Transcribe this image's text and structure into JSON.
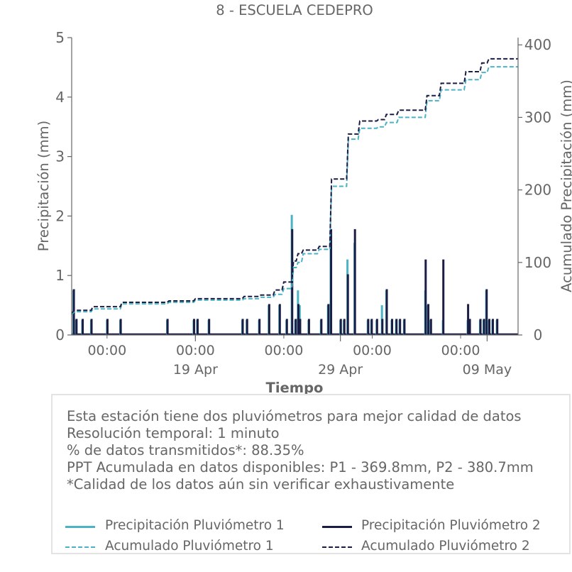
{
  "chart_data": {
    "type": "bar+line",
    "title": "8 - ESCUELA CEDEPRO",
    "xlabel": "Tiempo",
    "ylabel": "Precipitación (mm)",
    "y2label": "Acumulado Precipitación (mm)",
    "ylim": [
      0,
      5
    ],
    "y2lim": [
      0,
      410
    ],
    "yticks": [
      0,
      1,
      2,
      3,
      4,
      5
    ],
    "y2ticks": [
      0,
      100,
      200,
      300,
      400
    ],
    "xlim_days": [
      0,
      50.5
    ],
    "x_ticks_minor": [
      {
        "day": 4.0,
        "label": "00:00"
      },
      {
        "day": 14.0,
        "label": "00:00"
      },
      {
        "day": 24.0,
        "label": "00:00"
      },
      {
        "day": 34.0,
        "label": "00:00"
      },
      {
        "day": 44.0,
        "label": "00:00"
      }
    ],
    "x_ticks_major": [
      {
        "day": 14.0,
        "label": "19 Apr"
      },
      {
        "day": 30.4,
        "label": "29 Apr"
      },
      {
        "day": 47.0,
        "label": "09 May"
      }
    ],
    "series": [
      {
        "name": "Precipitación Pluviómetro 1",
        "kind": "bar",
        "color": "#4bb3c4",
        "points": [
          [
            0.2,
            0.75
          ],
          [
            0.5,
            0.25
          ],
          [
            1.2,
            0.25
          ],
          [
            2.2,
            0.25
          ],
          [
            4.0,
            0.25
          ],
          [
            5.5,
            0.25
          ],
          [
            10.8,
            0.25
          ],
          [
            13.8,
            0.25
          ],
          [
            14.2,
            0.25
          ],
          [
            15.5,
            0.25
          ],
          [
            19.3,
            0.25
          ],
          [
            19.8,
            0.25
          ],
          [
            21.2,
            0.25
          ],
          [
            22.3,
            0.5
          ],
          [
            23.5,
            0.5
          ],
          [
            24.3,
            0.25
          ],
          [
            24.9,
            2.02
          ],
          [
            25.3,
            0.25
          ],
          [
            25.6,
            0.75
          ],
          [
            25.8,
            0.5
          ],
          [
            26.8,
            0.25
          ],
          [
            28.2,
            0.25
          ],
          [
            29.0,
            0.5
          ],
          [
            29.3,
            1.75
          ],
          [
            30.4,
            0.25
          ],
          [
            30.8,
            0.25
          ],
          [
            31.2,
            1.27
          ],
          [
            32.0,
            1.55
          ],
          [
            33.5,
            0.25
          ],
          [
            33.9,
            0.25
          ],
          [
            34.5,
            0.25
          ],
          [
            35.1,
            0.5
          ],
          [
            35.6,
            0.75
          ],
          [
            36.2,
            0.25
          ],
          [
            36.7,
            0.25
          ],
          [
            37.1,
            0.25
          ],
          [
            37.6,
            0.25
          ],
          [
            40.0,
            0.75
          ],
          [
            40.3,
            0.5
          ],
          [
            40.6,
            0.25
          ],
          [
            42.0,
            0.25
          ],
          [
            44.8,
            0.25
          ],
          [
            45.0,
            0.25
          ],
          [
            46.2,
            0.25
          ],
          [
            46.6,
            0.25
          ],
          [
            46.9,
            0.75
          ],
          [
            47.2,
            0.25
          ],
          [
            47.6,
            0.25
          ],
          [
            48.1,
            0.25
          ]
        ]
      },
      {
        "name": "Precipitación Pluviómetro 2",
        "kind": "bar",
        "color": "#1b1d45",
        "points": [
          [
            0.2,
            0.77
          ],
          [
            0.5,
            0.27
          ],
          [
            1.2,
            0.27
          ],
          [
            2.2,
            0.27
          ],
          [
            4.0,
            0.27
          ],
          [
            5.5,
            0.27
          ],
          [
            10.8,
            0.27
          ],
          [
            13.8,
            0.27
          ],
          [
            14.2,
            0.27
          ],
          [
            15.5,
            0.27
          ],
          [
            19.3,
            0.27
          ],
          [
            19.8,
            0.27
          ],
          [
            21.2,
            0.27
          ],
          [
            22.3,
            0.52
          ],
          [
            23.5,
            0.52
          ],
          [
            24.3,
            0.27
          ],
          [
            24.9,
            1.78
          ],
          [
            25.3,
            0.27
          ],
          [
            25.6,
            0.52
          ],
          [
            25.8,
            0.27
          ],
          [
            26.8,
            0.27
          ],
          [
            28.2,
            0.27
          ],
          [
            29.0,
            0.52
          ],
          [
            29.3,
            1.78
          ],
          [
            30.4,
            0.27
          ],
          [
            30.8,
            0.27
          ],
          [
            31.2,
            1.02
          ],
          [
            32.0,
            1.78
          ],
          [
            33.5,
            0.27
          ],
          [
            33.9,
            0.27
          ],
          [
            34.5,
            0.27
          ],
          [
            35.1,
            0.27
          ],
          [
            35.6,
            0.77
          ],
          [
            36.2,
            0.27
          ],
          [
            36.7,
            0.27
          ],
          [
            37.1,
            0.27
          ],
          [
            37.6,
            0.27
          ],
          [
            40.0,
            1.27
          ],
          [
            40.3,
            0.52
          ],
          [
            40.6,
            0.27
          ],
          [
            42.0,
            1.27
          ],
          [
            44.8,
            0.52
          ],
          [
            45.0,
            0.27
          ],
          [
            46.2,
            0.27
          ],
          [
            46.6,
            0.27
          ],
          [
            46.9,
            0.77
          ],
          [
            47.2,
            0.27
          ],
          [
            47.6,
            0.27
          ],
          [
            48.1,
            0.27
          ]
        ]
      },
      {
        "name": "Acumulado Pluviómetro 1",
        "kind": "step",
        "color": "#4bb3c4",
        "dash": true,
        "points": [
          [
            0.0,
            28
          ],
          [
            0.3,
            32
          ],
          [
            2.2,
            32
          ],
          [
            2.4,
            36
          ],
          [
            5.5,
            36
          ],
          [
            5.7,
            43
          ],
          [
            10.8,
            43
          ],
          [
            11.0,
            45
          ],
          [
            13.8,
            45
          ],
          [
            14.0,
            48
          ],
          [
            19.3,
            48
          ],
          [
            19.5,
            50
          ],
          [
            21.2,
            50
          ],
          [
            21.4,
            52
          ],
          [
            22.8,
            52
          ],
          [
            23.0,
            56
          ],
          [
            23.8,
            56
          ],
          [
            24.0,
            64
          ],
          [
            24.9,
            64
          ],
          [
            25.1,
            93
          ],
          [
            25.4,
            93
          ],
          [
            25.6,
            100
          ],
          [
            26.0,
            100
          ],
          [
            26.2,
            112
          ],
          [
            27.8,
            112
          ],
          [
            28.0,
            118
          ],
          [
            29.2,
            118
          ],
          [
            29.4,
            205
          ],
          [
            31.1,
            205
          ],
          [
            31.3,
            270
          ],
          [
            32.4,
            270
          ],
          [
            32.6,
            285
          ],
          [
            34.5,
            285
          ],
          [
            34.7,
            287
          ],
          [
            35.4,
            287
          ],
          [
            35.6,
            293
          ],
          [
            36.8,
            293
          ],
          [
            37.0,
            300
          ],
          [
            40.0,
            300
          ],
          [
            40.2,
            323
          ],
          [
            41.6,
            323
          ],
          [
            41.8,
            338
          ],
          [
            44.4,
            338
          ],
          [
            44.6,
            352
          ],
          [
            46.2,
            352
          ],
          [
            46.4,
            362
          ],
          [
            47.0,
            362
          ],
          [
            47.2,
            369.8
          ],
          [
            50.5,
            369.8
          ]
        ]
      },
      {
        "name": "Acumulado Pluviómetro 2",
        "kind": "step",
        "color": "#1b1d45",
        "dash": true,
        "points": [
          [
            0.0,
            30
          ],
          [
            0.3,
            34
          ],
          [
            2.2,
            34
          ],
          [
            2.4,
            39
          ],
          [
            5.5,
            39
          ],
          [
            5.7,
            45
          ],
          [
            10.8,
            45
          ],
          [
            11.0,
            47
          ],
          [
            13.8,
            47
          ],
          [
            14.0,
            50
          ],
          [
            19.3,
            50
          ],
          [
            19.5,
            53
          ],
          [
            21.2,
            53
          ],
          [
            21.4,
            55
          ],
          [
            22.8,
            55
          ],
          [
            23.0,
            62
          ],
          [
            23.8,
            62
          ],
          [
            24.0,
            73
          ],
          [
            24.9,
            73
          ],
          [
            25.1,
            102
          ],
          [
            25.4,
            102
          ],
          [
            25.6,
            112
          ],
          [
            26.0,
            112
          ],
          [
            26.2,
            117
          ],
          [
            27.8,
            117
          ],
          [
            28.0,
            122
          ],
          [
            29.2,
            122
          ],
          [
            29.4,
            215
          ],
          [
            31.1,
            215
          ],
          [
            31.3,
            277
          ],
          [
            32.4,
            277
          ],
          [
            32.6,
            295
          ],
          [
            34.5,
            295
          ],
          [
            34.7,
            297
          ],
          [
            35.4,
            297
          ],
          [
            35.6,
            304
          ],
          [
            36.8,
            304
          ],
          [
            37.0,
            310
          ],
          [
            40.0,
            310
          ],
          [
            40.2,
            330
          ],
          [
            41.6,
            330
          ],
          [
            41.8,
            347
          ],
          [
            44.4,
            347
          ],
          [
            44.6,
            363
          ],
          [
            46.2,
            363
          ],
          [
            46.4,
            375
          ],
          [
            47.0,
            375
          ],
          [
            47.2,
            380.7
          ],
          [
            50.5,
            380.7
          ]
        ]
      }
    ],
    "legend": [
      "Precipitación Pluviómetro 1",
      "Precipitación Pluviómetro 2",
      "Acumulado Pluviómetro 1",
      "Acumulado Pluviómetro 2"
    ],
    "legend_placement": "bottom",
    "grid": false
  },
  "info": {
    "lines": [
      "Esta estación tiene dos pluviómetros para mejor calidad de datos",
      "Resolución temporal: 1 minuto",
      "% de datos transmitidos*: 88.35%",
      "PPT Acumulada en datos disponibles: P1 - 369.8mm, P2 - 380.7mm",
      "*Calidad de los datos aún sin verificar exhaustivamente"
    ]
  },
  "colors": {
    "p1": "#4bb3c4",
    "p2": "#1b1d45",
    "axis": "#666666",
    "text": "#666666"
  }
}
